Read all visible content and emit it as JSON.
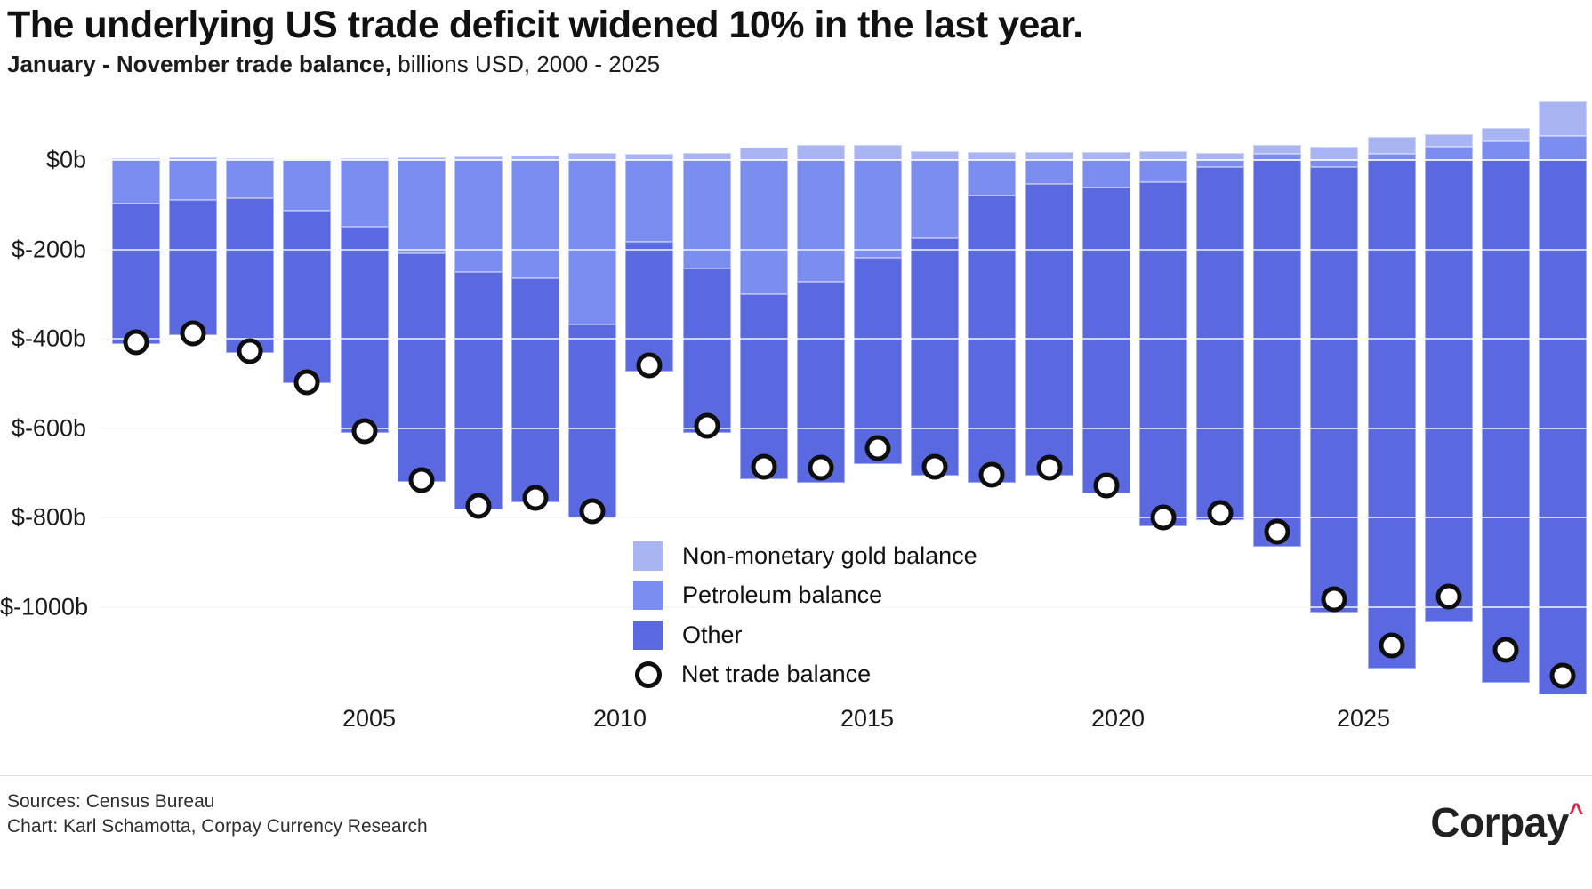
{
  "header": {
    "title": "The underlying US trade deficit widened 10% in the last year.",
    "subtitle_bold": "January - November trade balance,",
    "subtitle_rest": " billions USD, 2000 - 2025"
  },
  "colors": {
    "gold": "#a9b5f2",
    "petroleum": "#7c8df0",
    "other": "#5a69e0",
    "marker_fill": "#ffffff",
    "marker_stroke": "#0e0e0e",
    "grid": "#ececec",
    "text": "#111111",
    "logo_caret_color": "#d22b4e"
  },
  "chart_data": {
    "type": "bar",
    "stacked": true,
    "title": "The underlying US trade deficit widened 10% in the last year.",
    "subtitle": "January - November trade balance, billions USD, 2000 - 2025",
    "xlabel": "",
    "ylabel": "billions USD",
    "x": [
      2000,
      2001,
      2002,
      2003,
      2004,
      2005,
      2006,
      2007,
      2008,
      2009,
      2010,
      2011,
      2012,
      2013,
      2014,
      2015,
      2016,
      2017,
      2018,
      2019,
      2020,
      2021,
      2022,
      2023,
      2024,
      2025
    ],
    "series": [
      {
        "name": "Non-monetary gold balance",
        "values": [
          4,
          5,
          3,
          2,
          3,
          5,
          7,
          10,
          15,
          14,
          16,
          28,
          34,
          34,
          20,
          18,
          18,
          18,
          20,
          16,
          20,
          29,
          38,
          28,
          30,
          78
        ]
      },
      {
        "name": "Petroleum balance",
        "values": [
          -98,
          -89,
          -85,
          -113,
          -149,
          -209,
          -250,
          -264,
          -368,
          -183,
          -243,
          -300,
          -272,
          -219,
          -175,
          -80,
          -54,
          -62,
          -50,
          -16,
          14,
          -15,
          14,
          30,
          42,
          53
        ]
      },
      {
        "name": "Other",
        "values": [
          -314,
          -303,
          -346,
          -386,
          -461,
          -511,
          -531,
          -501,
          -433,
          -291,
          -367,
          -413,
          -450,
          -460,
          -531,
          -642,
          -652,
          -684,
          -769,
          -789,
          -865,
          -997,
          -1138,
          -1034,
          -1168,
          -1285
        ]
      }
    ],
    "markers": {
      "name": "Net trade balance",
      "values": [
        -408,
        -387,
        -428,
        -497,
        -607,
        -715,
        -774,
        -755,
        -786,
        -460,
        -594,
        -685,
        -688,
        -645,
        -686,
        -704,
        -688,
        -728,
        -799,
        -789,
        -831,
        -983,
        -1086,
        -976,
        -1096,
        -1154
      ]
    },
    "y_axis": {
      "tick_values": [
        0,
        -200,
        -400,
        -600,
        -800,
        -1000
      ],
      "tick_labels": [
        "$0b",
        "$-200b",
        "$-400b",
        "$-600b",
        "$-800b",
        "$-1000b"
      ],
      "range": [
        -1200,
        150
      ],
      "grid": true
    },
    "x_axis": {
      "tick_labels": [
        "2005",
        "2010",
        "2015",
        "2020",
        "2025"
      ]
    },
    "legend": {
      "position": "inside-bottom-center",
      "entries": [
        "Non-monetary gold balance",
        "Petroleum balance",
        "Other",
        "Net trade balance"
      ]
    }
  },
  "footer": {
    "source_line": "Sources: Census Bureau",
    "credit_line": "Chart: Karl Schamotta, Corpay Currency Research",
    "logo_text": "Corpay",
    "logo_caret": "^"
  }
}
